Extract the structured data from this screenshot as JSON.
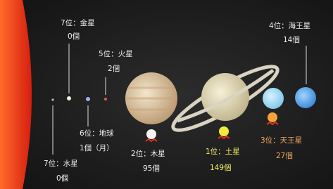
{
  "planets": [
    {
      "rank": "7位：水星",
      "moons": "0個"
    },
    {
      "rank": "7位：金星",
      "moons": "0個"
    },
    {
      "rank": "6位：地球",
      "moons": "1個（月）"
    },
    {
      "rank": "5位：火星",
      "moons": "2個"
    },
    {
      "rank": "2位：木星",
      "moons": "95個"
    },
    {
      "rank": "1位：土星",
      "moons": "149個"
    },
    {
      "rank": "3位：天王星",
      "moons": "27個"
    },
    {
      "rank": "4位：海王星",
      "moons": "14個"
    }
  ]
}
